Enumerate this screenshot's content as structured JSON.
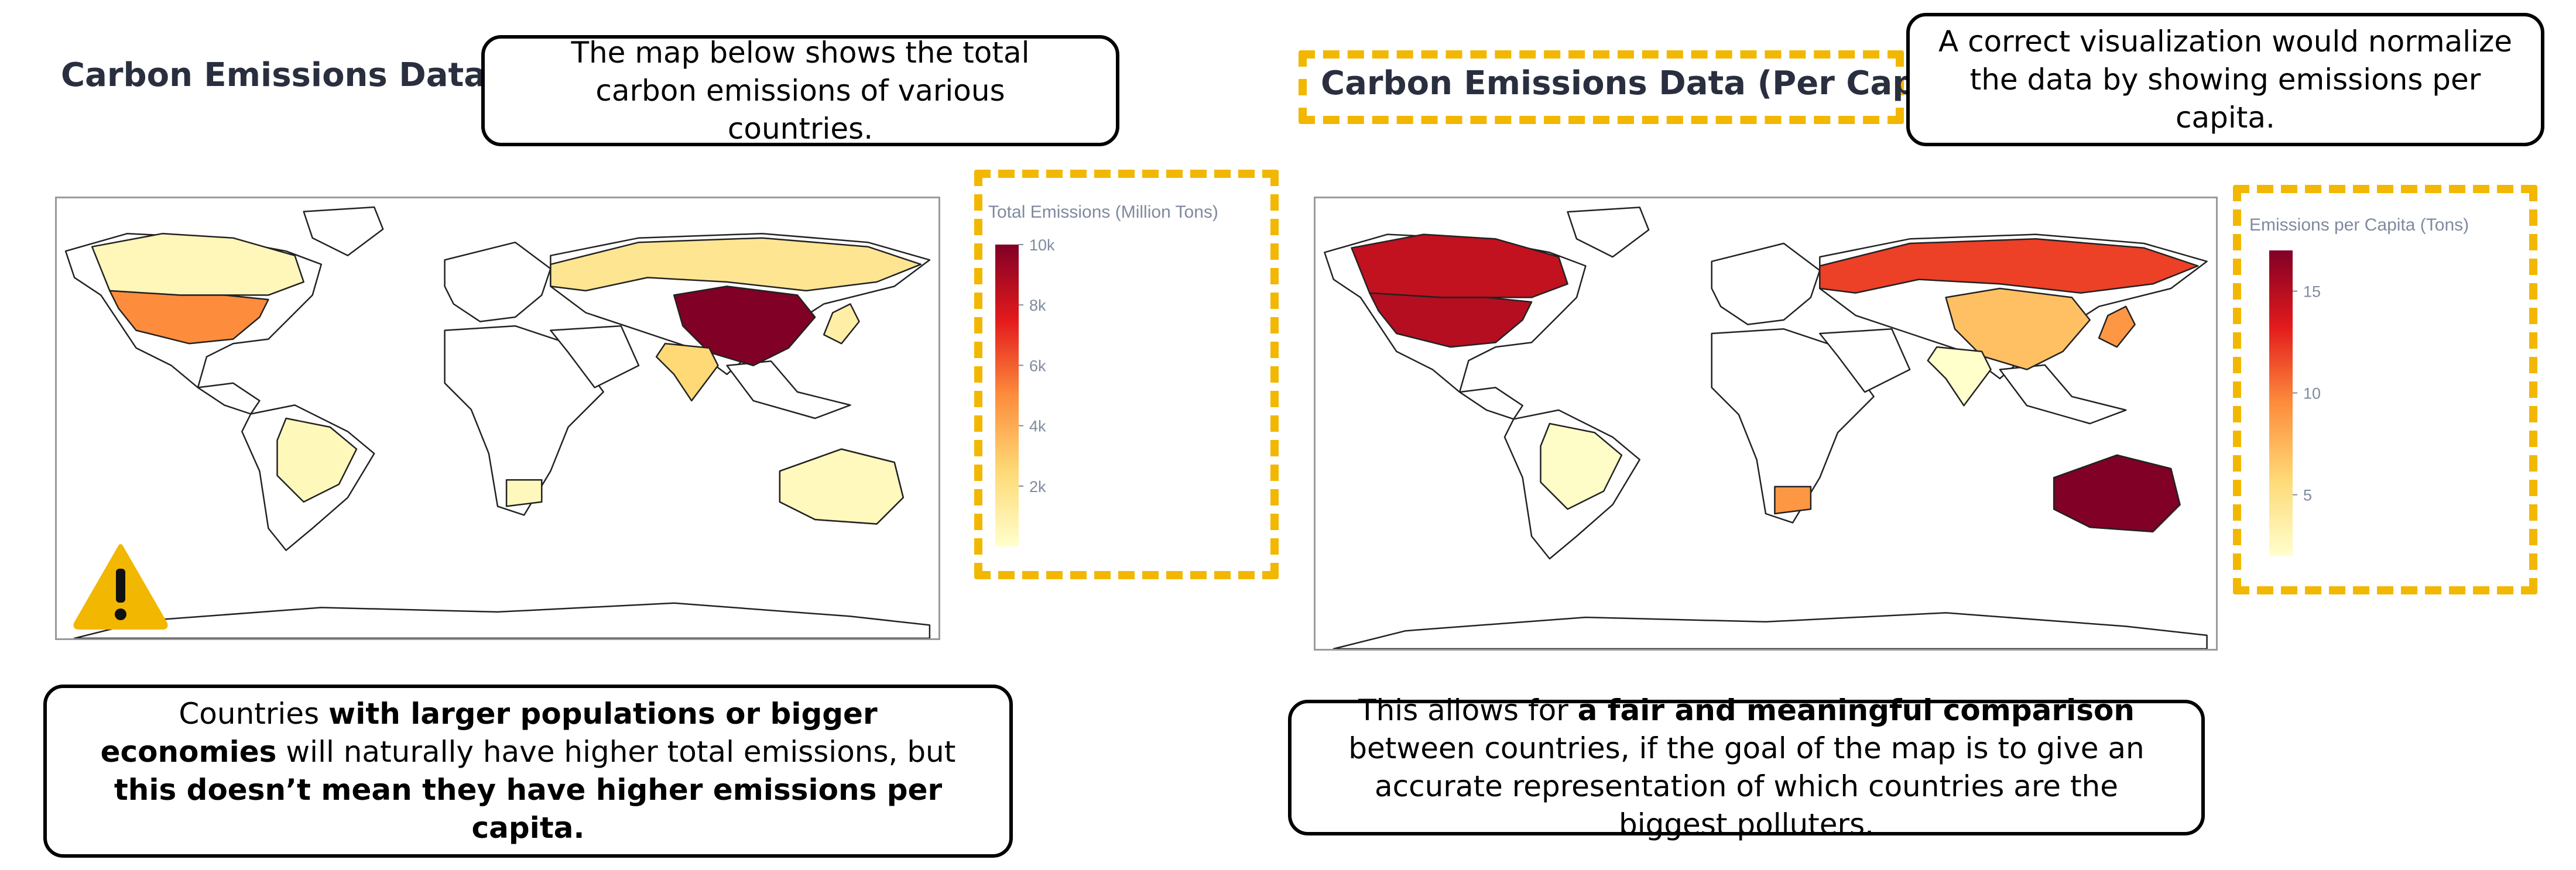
{
  "left_panel": {
    "title": "Carbon Emissions Data",
    "top_callout": "The map below shows the total carbon emissions of various countries.",
    "bottom_callout": {
      "parts": [
        {
          "text": "Countries ",
          "bold": false
        },
        {
          "text": "with larger populations or bigger economies",
          "bold": true
        },
        {
          "text": " will naturally have higher total emissions, but ",
          "bold": false
        },
        {
          "text": "this doesn’t mean they have higher emissions per capita.",
          "bold": true
        }
      ]
    },
    "warning_icon": "warning-triangle-icon"
  },
  "right_panel": {
    "title": "Carbon Emissions Data (Per Capita)",
    "top_callout": "A correct visualization would normalize the data by showing emissions per capita.",
    "bottom_callout": {
      "parts": [
        {
          "text": "This allows for ",
          "bold": false
        },
        {
          "text": "a fair and meaningful comparison",
          "bold": true
        },
        {
          "text": " between countries, if the goal of the map is to give an accurate representation of which countries are the biggest polluters.",
          "bold": false
        }
      ]
    }
  },
  "colors": {
    "highlight_dash": "#f2b700",
    "scale": [
      "#ffffcc",
      "#fed976",
      "#fd8d3c",
      "#e31a1c",
      "#800026"
    ],
    "title_text": "#2a2f3f",
    "legend_text": "#7f8a9e"
  },
  "chart_data": [
    {
      "type": "choropleth",
      "colorbar_title": "Total Emissions (Million Tons)",
      "colorbar_ticks": [
        "10k",
        "8k",
        "6k",
        "4k",
        "2k"
      ],
      "colorbar_range": [
        0,
        10000
      ],
      "values": [
        {
          "region": "China",
          "value": 10000
        },
        {
          "region": "United States",
          "value": 5000
        },
        {
          "region": "India",
          "value": 2500
        },
        {
          "region": "Russia",
          "value": 1700
        },
        {
          "region": "Japan",
          "value": 1100
        },
        {
          "region": "Canada",
          "value": 560
        },
        {
          "region": "Brazil",
          "value": 480
        },
        {
          "region": "South Africa",
          "value": 450
        },
        {
          "region": "Australia",
          "value": 400
        }
      ]
    },
    {
      "type": "choropleth",
      "colorbar_title": "Emissions per Capita (Tons)",
      "colorbar_ticks": [
        "15",
        "10",
        "5"
      ],
      "colorbar_range": [
        2,
        17
      ],
      "values": [
        {
          "region": "Australia",
          "value": 17
        },
        {
          "region": "United States",
          "value": 15
        },
        {
          "region": "Canada",
          "value": 14.5
        },
        {
          "region": "Russia",
          "value": 12
        },
        {
          "region": "South Africa",
          "value": 9
        },
        {
          "region": "Japan",
          "value": 9
        },
        {
          "region": "China",
          "value": 7
        },
        {
          "region": "Brazil",
          "value": 2.2
        },
        {
          "region": "India",
          "value": 1.9
        }
      ]
    }
  ]
}
